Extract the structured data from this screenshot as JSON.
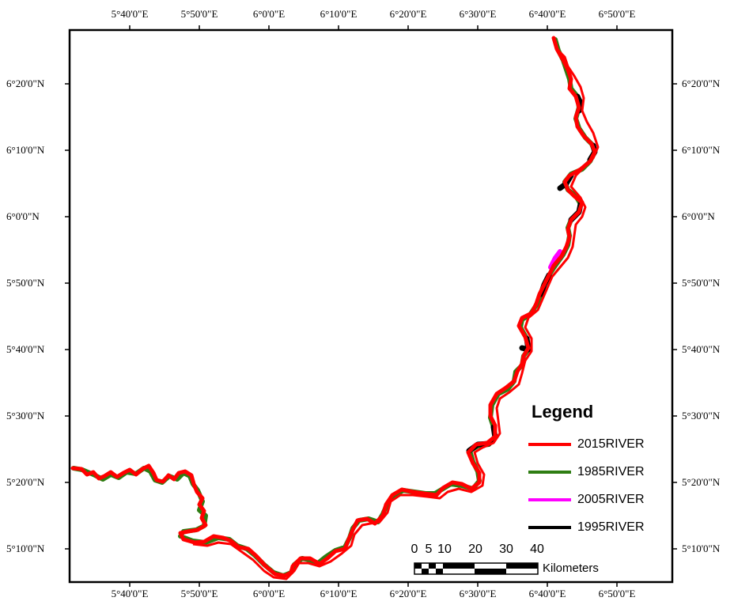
{
  "map": {
    "top_labels": [
      "5°40'0\"E",
      "5°50'0\"E",
      "6°0'0\"E",
      "6°10'0\"E",
      "6°20'0\"E",
      "6°30'0\"E",
      "6°40'0\"E",
      "6°50'0\"E"
    ],
    "bottom_labels": [
      "5°40'0\"E",
      "5°50'0\"E",
      "6°0'0\"E",
      "6°10'0\"E",
      "6°20'0\"E",
      "6°30'0\"E",
      "6°40'0\"E",
      "6°50'0\"E"
    ],
    "left_labels": [
      "6°20'0\"N",
      "6°10'0\"N",
      "6°0'0\"N",
      "5°50'0\"N",
      "5°40'0\"N",
      "5°30'0\"N",
      "5°20'0\"N",
      "5°10'0\"N"
    ],
    "right_labels": [
      "6°20'0\"N",
      "6°10'0\"N",
      "6°0'0\"N",
      "5°50'0\"N",
      "5°40'0\"N",
      "5°30'0\"N",
      "5°20'0\"N",
      "5°10'0\"N"
    ]
  },
  "legend": {
    "title": "Legend",
    "items": [
      {
        "label": "2015RIVER",
        "color": "#ff0000"
      },
      {
        "label": "1985RIVER",
        "color": "#2e7d12"
      },
      {
        "label": "2005RIVER",
        "color": "#ff00ff"
      },
      {
        "label": "1995RIVER",
        "color": "#000000"
      }
    ]
  },
  "scale_bar": {
    "ticks": [
      "0",
      "5",
      "10",
      "20",
      "30",
      "40"
    ],
    "unit": "Kilometers"
  },
  "colors": {
    "river_2015": "#ff0000",
    "river_1985": "#2e7d12",
    "river_2005": "#ff00ff",
    "river_1995": "#000000"
  }
}
